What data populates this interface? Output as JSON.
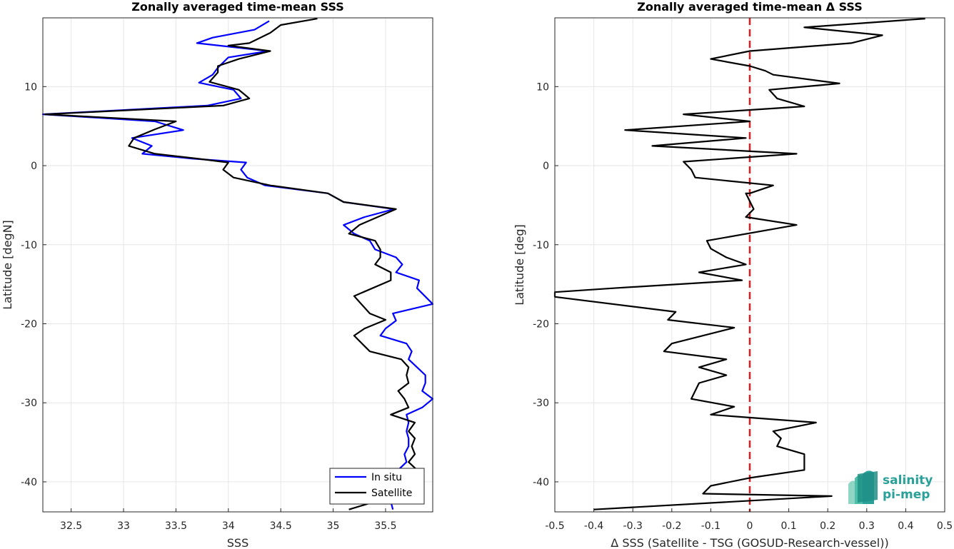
{
  "colors": {
    "in_situ": "#0000ff",
    "satellite": "#000000",
    "zero_line": "#e41a1c",
    "grid": "#e6e6e6",
    "axis": "#262626",
    "logo": "#2aa198"
  },
  "logo": {
    "line1": "salinity",
    "line2": "pi-mep",
    "icon": "waves-icon"
  },
  "chart_data": [
    {
      "type": "line",
      "title": "Zonally averaged time-mean SSS",
      "xlabel": "SSS",
      "ylabel": "Latitude [degN]",
      "xlim": [
        32.23,
        35.95
      ],
      "ylim": [
        -43.8,
        18.7
      ],
      "xticks": [
        32.5,
        33,
        33.5,
        34,
        34.5,
        35,
        35.5
      ],
      "xtick_labels": [
        "32.5",
        "33",
        "33.5",
        "34",
        "34.5",
        "35",
        "35.5"
      ],
      "yticks": [
        -40,
        -30,
        -20,
        -10,
        0,
        10
      ],
      "ytick_labels": [
        "-40",
        "-30",
        "-20",
        "-10",
        "0",
        "10"
      ],
      "grid": true,
      "legend": "bottom-right",
      "series": [
        {
          "name": "In situ",
          "color": "#0000ff",
          "points": [
            [
              34.39,
              18.3
            ],
            [
              34.25,
              17.2
            ],
            [
              33.85,
              16.2
            ],
            [
              33.7,
              15.5
            ],
            [
              34.38,
              14.5
            ],
            [
              34.0,
              13.7
            ],
            [
              33.9,
              12.4
            ],
            [
              33.85,
              11.5
            ],
            [
              33.72,
              10.5
            ],
            [
              34.05,
              9.6
            ],
            [
              34.12,
              8.5
            ],
            [
              33.8,
              7.6
            ],
            [
              32.23,
              6.5
            ],
            [
              33.3,
              5.6
            ],
            [
              33.57,
              4.5
            ],
            [
              33.08,
              3.5
            ],
            [
              33.27,
              2.5
            ],
            [
              33.18,
              1.5
            ],
            [
              33.65,
              0.9
            ],
            [
              34.17,
              0.4
            ],
            [
              34.12,
              -0.5
            ],
            [
              34.18,
              -1.5
            ],
            [
              34.35,
              -2.5
            ],
            [
              34.95,
              -3.5
            ],
            [
              35.1,
              -4.6
            ],
            [
              35.58,
              -5.5
            ],
            [
              35.3,
              -6.5
            ],
            [
              35.1,
              -7.5
            ],
            [
              35.2,
              -8.6
            ],
            [
              35.35,
              -9.5
            ],
            [
              35.4,
              -10.6
            ],
            [
              35.6,
              -11.6
            ],
            [
              35.66,
              -12.5
            ],
            [
              35.6,
              -13.5
            ],
            [
              35.82,
              -14.5
            ],
            [
              35.8,
              -15.5
            ],
            [
              35.95,
              -17.5
            ],
            [
              35.57,
              -18.7
            ],
            [
              35.6,
              -19.6
            ],
            [
              35.5,
              -20.6
            ],
            [
              35.45,
              -21.5
            ],
            [
              35.7,
              -22.5
            ],
            [
              35.75,
              -23.5
            ],
            [
              35.72,
              -24.5
            ],
            [
              35.8,
              -25.5
            ],
            [
              35.88,
              -26.5
            ],
            [
              35.88,
              -27.5
            ],
            [
              35.85,
              -28.5
            ],
            [
              35.95,
              -29.5
            ],
            [
              35.85,
              -30.6
            ],
            [
              35.7,
              -31.5
            ],
            [
              35.72,
              -32.5
            ],
            [
              35.7,
              -33.6
            ],
            [
              35.72,
              -34.5
            ],
            [
              35.72,
              -35.5
            ],
            [
              35.68,
              -36.5
            ],
            [
              35.7,
              -37.5
            ],
            [
              35.62,
              -38.5
            ],
            [
              35.7,
              -39.5
            ],
            [
              35.62,
              -40.5
            ],
            [
              35.68,
              -41.5
            ],
            [
              35.55,
              -42.5
            ],
            [
              35.57,
              -43.5
            ]
          ]
        },
        {
          "name": "Satellite",
          "color": "#000000",
          "points": [
            [
              34.85,
              18.6
            ],
            [
              34.5,
              17.8
            ],
            [
              34.4,
              16.8
            ],
            [
              34.2,
              15.5
            ],
            [
              34.0,
              15.2
            ],
            [
              34.4,
              14.5
            ],
            [
              34.1,
              13.5
            ],
            [
              33.9,
              12.6
            ],
            [
              33.9,
              11.8
            ],
            [
              33.82,
              10.6
            ],
            [
              34.1,
              9.6
            ],
            [
              34.2,
              8.5
            ],
            [
              33.95,
              7.6
            ],
            [
              32.25,
              6.5
            ],
            [
              33.5,
              5.6
            ],
            [
              33.3,
              4.6
            ],
            [
              33.1,
              3.5
            ],
            [
              33.05,
              2.5
            ],
            [
              33.3,
              1.5
            ],
            [
              33.7,
              0.9
            ],
            [
              34.0,
              0.4
            ],
            [
              33.95,
              -0.5
            ],
            [
              34.05,
              -1.5
            ],
            [
              34.4,
              -2.5
            ],
            [
              34.95,
              -3.5
            ],
            [
              35.1,
              -4.6
            ],
            [
              35.6,
              -5.5
            ],
            [
              35.25,
              -7.5
            ],
            [
              35.15,
              -8.6
            ],
            [
              35.4,
              -9.5
            ],
            [
              35.45,
              -10.6
            ],
            [
              35.45,
              -11.6
            ],
            [
              35.4,
              -12.5
            ],
            [
              35.55,
              -13.5
            ],
            [
              35.55,
              -14.5
            ],
            [
              35.2,
              -16.5
            ],
            [
              35.35,
              -18.7
            ],
            [
              35.5,
              -19.5
            ],
            [
              35.3,
              -20.6
            ],
            [
              35.2,
              -21.5
            ],
            [
              35.35,
              -23.5
            ],
            [
              35.65,
              -24.5
            ],
            [
              35.72,
              -25.5
            ],
            [
              35.7,
              -26.5
            ],
            [
              35.72,
              -27.5
            ],
            [
              35.62,
              -28.5
            ],
            [
              35.68,
              -29.5
            ],
            [
              35.72,
              -30.6
            ],
            [
              35.55,
              -31.5
            ],
            [
              35.78,
              -32.5
            ],
            [
              35.72,
              -33.6
            ],
            [
              35.78,
              -34.5
            ],
            [
              35.75,
              -35.5
            ],
            [
              35.78,
              -36.5
            ],
            [
              35.72,
              -37.5
            ],
            [
              35.8,
              -38.5
            ],
            [
              35.82,
              -39.5
            ],
            [
              35.68,
              -40.5
            ],
            [
              35.72,
              -41.5
            ],
            [
              35.4,
              -42.5
            ],
            [
              35.15,
              -43.5
            ]
          ]
        }
      ]
    },
    {
      "type": "line",
      "title": "Zonally averaged time-mean Δ SSS",
      "xlabel": "Δ SSS (Satellite - TSG (GOSUD-Research-vessel))",
      "ylabel": "Latitude [deg]",
      "xlim": [
        -0.5,
        0.5
      ],
      "ylim": [
        -43.8,
        18.7
      ],
      "xticks": [
        -0.5,
        -0.4,
        -0.3,
        -0.2,
        -0.1,
        0,
        0.1,
        0.2,
        0.3,
        0.4,
        0.5
      ],
      "xtick_labels": [
        "-0.5",
        "-0.4",
        "-0.3",
        "-0.2",
        "-0.1",
        "0",
        "0.1",
        "0.2",
        "0.3",
        "0.4",
        "0.5"
      ],
      "yticks": [
        -40,
        -30,
        -20,
        -10,
        0,
        10
      ],
      "ytick_labels": [
        "-40",
        "-30",
        "-20",
        "-10",
        "0",
        "10"
      ],
      "grid": true,
      "reference_line": {
        "x": 0,
        "style": "dashed",
        "color": "#e41a1c"
      },
      "series": [
        {
          "color": "#000000",
          "points": [
            [
              0.45,
              18.6
            ],
            [
              0.14,
              17.5
            ],
            [
              0.34,
              16.5
            ],
            [
              0.26,
              15.5
            ],
            [
              0.0,
              14.5
            ],
            [
              -0.1,
              13.5
            ],
            [
              0.0,
              12.6
            ],
            [
              0.04,
              12.0
            ],
            [
              0.06,
              11.5
            ],
            [
              0.23,
              10.4
            ],
            [
              0.05,
              9.6
            ],
            [
              0.07,
              8.5
            ],
            [
              0.14,
              7.5
            ],
            [
              -0.17,
              6.5
            ],
            [
              0.0,
              5.6
            ],
            [
              -0.32,
              4.5
            ],
            [
              -0.01,
              3.5
            ],
            [
              -0.25,
              2.5
            ],
            [
              0.12,
              1.5
            ],
            [
              -0.17,
              0.5
            ],
            [
              -0.15,
              -0.5
            ],
            [
              -0.14,
              -1.5
            ],
            [
              0.06,
              -2.5
            ],
            [
              0.0,
              -3.5
            ],
            [
              -0.01,
              -3.5
            ],
            [
              0.0,
              -4.5
            ],
            [
              0.01,
              -5.5
            ],
            [
              -0.01,
              -6.5
            ],
            [
              0.12,
              -7.5
            ],
            [
              -0.11,
              -9.5
            ],
            [
              -0.1,
              -10.5
            ],
            [
              -0.06,
              -11.6
            ],
            [
              -0.01,
              -12.5
            ],
            [
              -0.13,
              -13.5
            ],
            [
              -0.02,
              -14.5
            ],
            [
              -0.35,
              -15.5
            ],
            [
              -0.5,
              -16.0
            ],
            [
              -0.5,
              -16.6
            ],
            [
              -0.19,
              -18.5
            ],
            [
              -0.21,
              -19.5
            ],
            [
              -0.04,
              -20.5
            ],
            [
              -0.2,
              -22.5
            ],
            [
              -0.22,
              -23.5
            ],
            [
              -0.06,
              -24.5
            ],
            [
              -0.13,
              -25.5
            ],
            [
              -0.06,
              -26.5
            ],
            [
              -0.13,
              -27.5
            ],
            [
              -0.15,
              -29.5
            ],
            [
              -0.04,
              -30.5
            ],
            [
              -0.1,
              -31.5
            ],
            [
              0.17,
              -32.5
            ],
            [
              0.06,
              -33.6
            ],
            [
              0.08,
              -34.5
            ],
            [
              0.07,
              -35.5
            ],
            [
              0.14,
              -36.5
            ],
            [
              0.14,
              -38.5
            ],
            [
              0.0,
              -39.5
            ],
            [
              -0.1,
              -40.5
            ],
            [
              -0.12,
              -41.5
            ],
            [
              0.21,
              -41.8
            ],
            [
              -0.4,
              -43.5
            ]
          ]
        }
      ]
    }
  ]
}
